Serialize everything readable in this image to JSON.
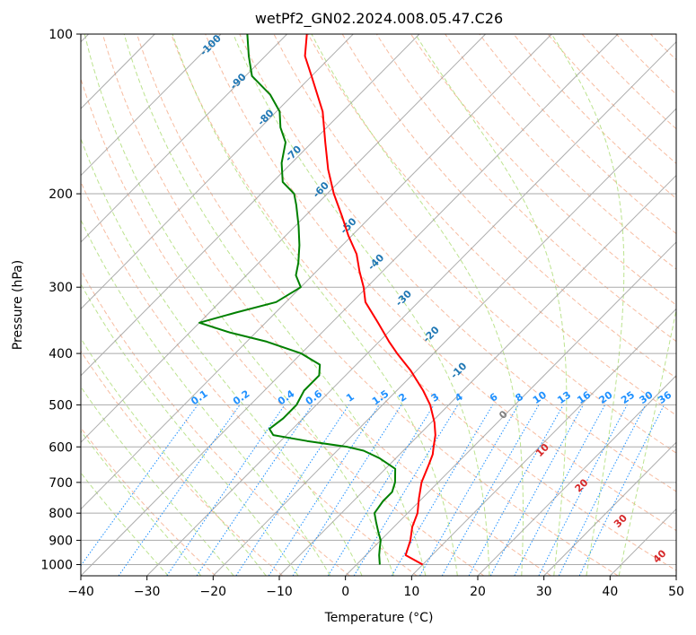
{
  "chart_data": {
    "type": "line",
    "title": "wetPf2_GN02.2024.008.05.47.C26",
    "xlabel": "Temperature (°C)",
    "ylabel": "Pressure (hPa)",
    "xlim": [
      -40,
      50
    ],
    "ylim": [
      1050,
      100
    ],
    "y_scale": "log",
    "skew": true,
    "grid": true,
    "xticks": [
      -40,
      -30,
      -20,
      -10,
      0,
      10,
      20,
      30,
      40,
      50
    ],
    "yticks": [
      100,
      200,
      300,
      400,
      500,
      600,
      700,
      800,
      900,
      1000
    ],
    "series": [
      {
        "color": "#ff0000",
        "points": [
          [
            1000,
            10.0
          ],
          [
            960,
            6.0
          ],
          [
            900,
            4.5
          ],
          [
            850,
            2.8
          ],
          [
            800,
            1.5
          ],
          [
            750,
            -0.5
          ],
          [
            700,
            -2.5
          ],
          [
            650,
            -4.0
          ],
          [
            620,
            -5.0
          ],
          [
            600,
            -6.0
          ],
          [
            570,
            -7.5
          ],
          [
            540,
            -9.5
          ],
          [
            500,
            -12.8
          ],
          [
            470,
            -16.0
          ],
          [
            430,
            -21.0
          ],
          [
            400,
            -25.5
          ],
          [
            380,
            -28.5
          ],
          [
            350,
            -33.0
          ],
          [
            320,
            -38.0
          ],
          [
            300,
            -40.5
          ],
          [
            280,
            -43.5
          ],
          [
            260,
            -46.5
          ],
          [
            240,
            -50.5
          ],
          [
            220,
            -54.5
          ],
          [
            200,
            -59.0
          ],
          [
            180,
            -63.5
          ],
          [
            160,
            -68.0
          ],
          [
            140,
            -73.0
          ],
          [
            120,
            -80.0
          ],
          [
            110,
            -84.0
          ],
          [
            100,
            -87.0
          ]
        ]
      },
      {
        "color": "#008000",
        "points": [
          [
            1000,
            3.5
          ],
          [
            960,
            2.0
          ],
          [
            930,
            1.0
          ],
          [
            900,
            0.0
          ],
          [
            870,
            -1.5
          ],
          [
            830,
            -3.5
          ],
          [
            800,
            -5.0
          ],
          [
            760,
            -5.5
          ],
          [
            730,
            -5.5
          ],
          [
            700,
            -6.5
          ],
          [
            660,
            -8.5
          ],
          [
            630,
            -12.5
          ],
          [
            610,
            -16.0
          ],
          [
            600,
            -19.0
          ],
          [
            585,
            -26.0
          ],
          [
            570,
            -32.0
          ],
          [
            555,
            -33.5
          ],
          [
            530,
            -33.0
          ],
          [
            500,
            -33.0
          ],
          [
            470,
            -34.0
          ],
          [
            440,
            -34.0
          ],
          [
            420,
            -35.5
          ],
          [
            400,
            -40.0
          ],
          [
            380,
            -47.0
          ],
          [
            365,
            -54.0
          ],
          [
            350,
            -60.0
          ],
          [
            335,
            -56.0
          ],
          [
            320,
            -51.5
          ],
          [
            300,
            -50.0
          ],
          [
            285,
            -52.5
          ],
          [
            270,
            -54.0
          ],
          [
            250,
            -56.5
          ],
          [
            230,
            -59.5
          ],
          [
            210,
            -63.0
          ],
          [
            200,
            -65.0
          ],
          [
            190,
            -68.5
          ],
          [
            175,
            -71.5
          ],
          [
            160,
            -74.0
          ],
          [
            150,
            -77.0
          ],
          [
            140,
            -79.5
          ],
          [
            130,
            -83.5
          ],
          [
            120,
            -89.0
          ],
          [
            110,
            -92.5
          ],
          [
            100,
            -96.0
          ]
        ]
      }
    ],
    "dry_adiabat_labels": [
      "-100",
      "-90",
      "-80",
      "-70",
      "-60",
      "-50",
      "-40",
      "-30",
      "-20",
      "-10"
    ],
    "moist_adiabat_labels": [
      "0",
      "10",
      "20",
      "30",
      "40"
    ],
    "mixing_ratio_labels": [
      "0.1",
      "0.2",
      "0.4",
      "0.6",
      "1",
      "1.5",
      "2",
      "3",
      "4",
      "6",
      "8",
      "10",
      "13",
      "16",
      "20",
      "25",
      "30",
      "36"
    ]
  },
  "colors": {
    "temperature": "#ff0000",
    "dewpoint": "#008000",
    "dry_adiabat": "#f4a582",
    "moist_adiabat": "#a6d96a",
    "mixing_ratio": "#1e90ff",
    "isotherm": "#999999",
    "isobar": "#aaaaaa"
  }
}
